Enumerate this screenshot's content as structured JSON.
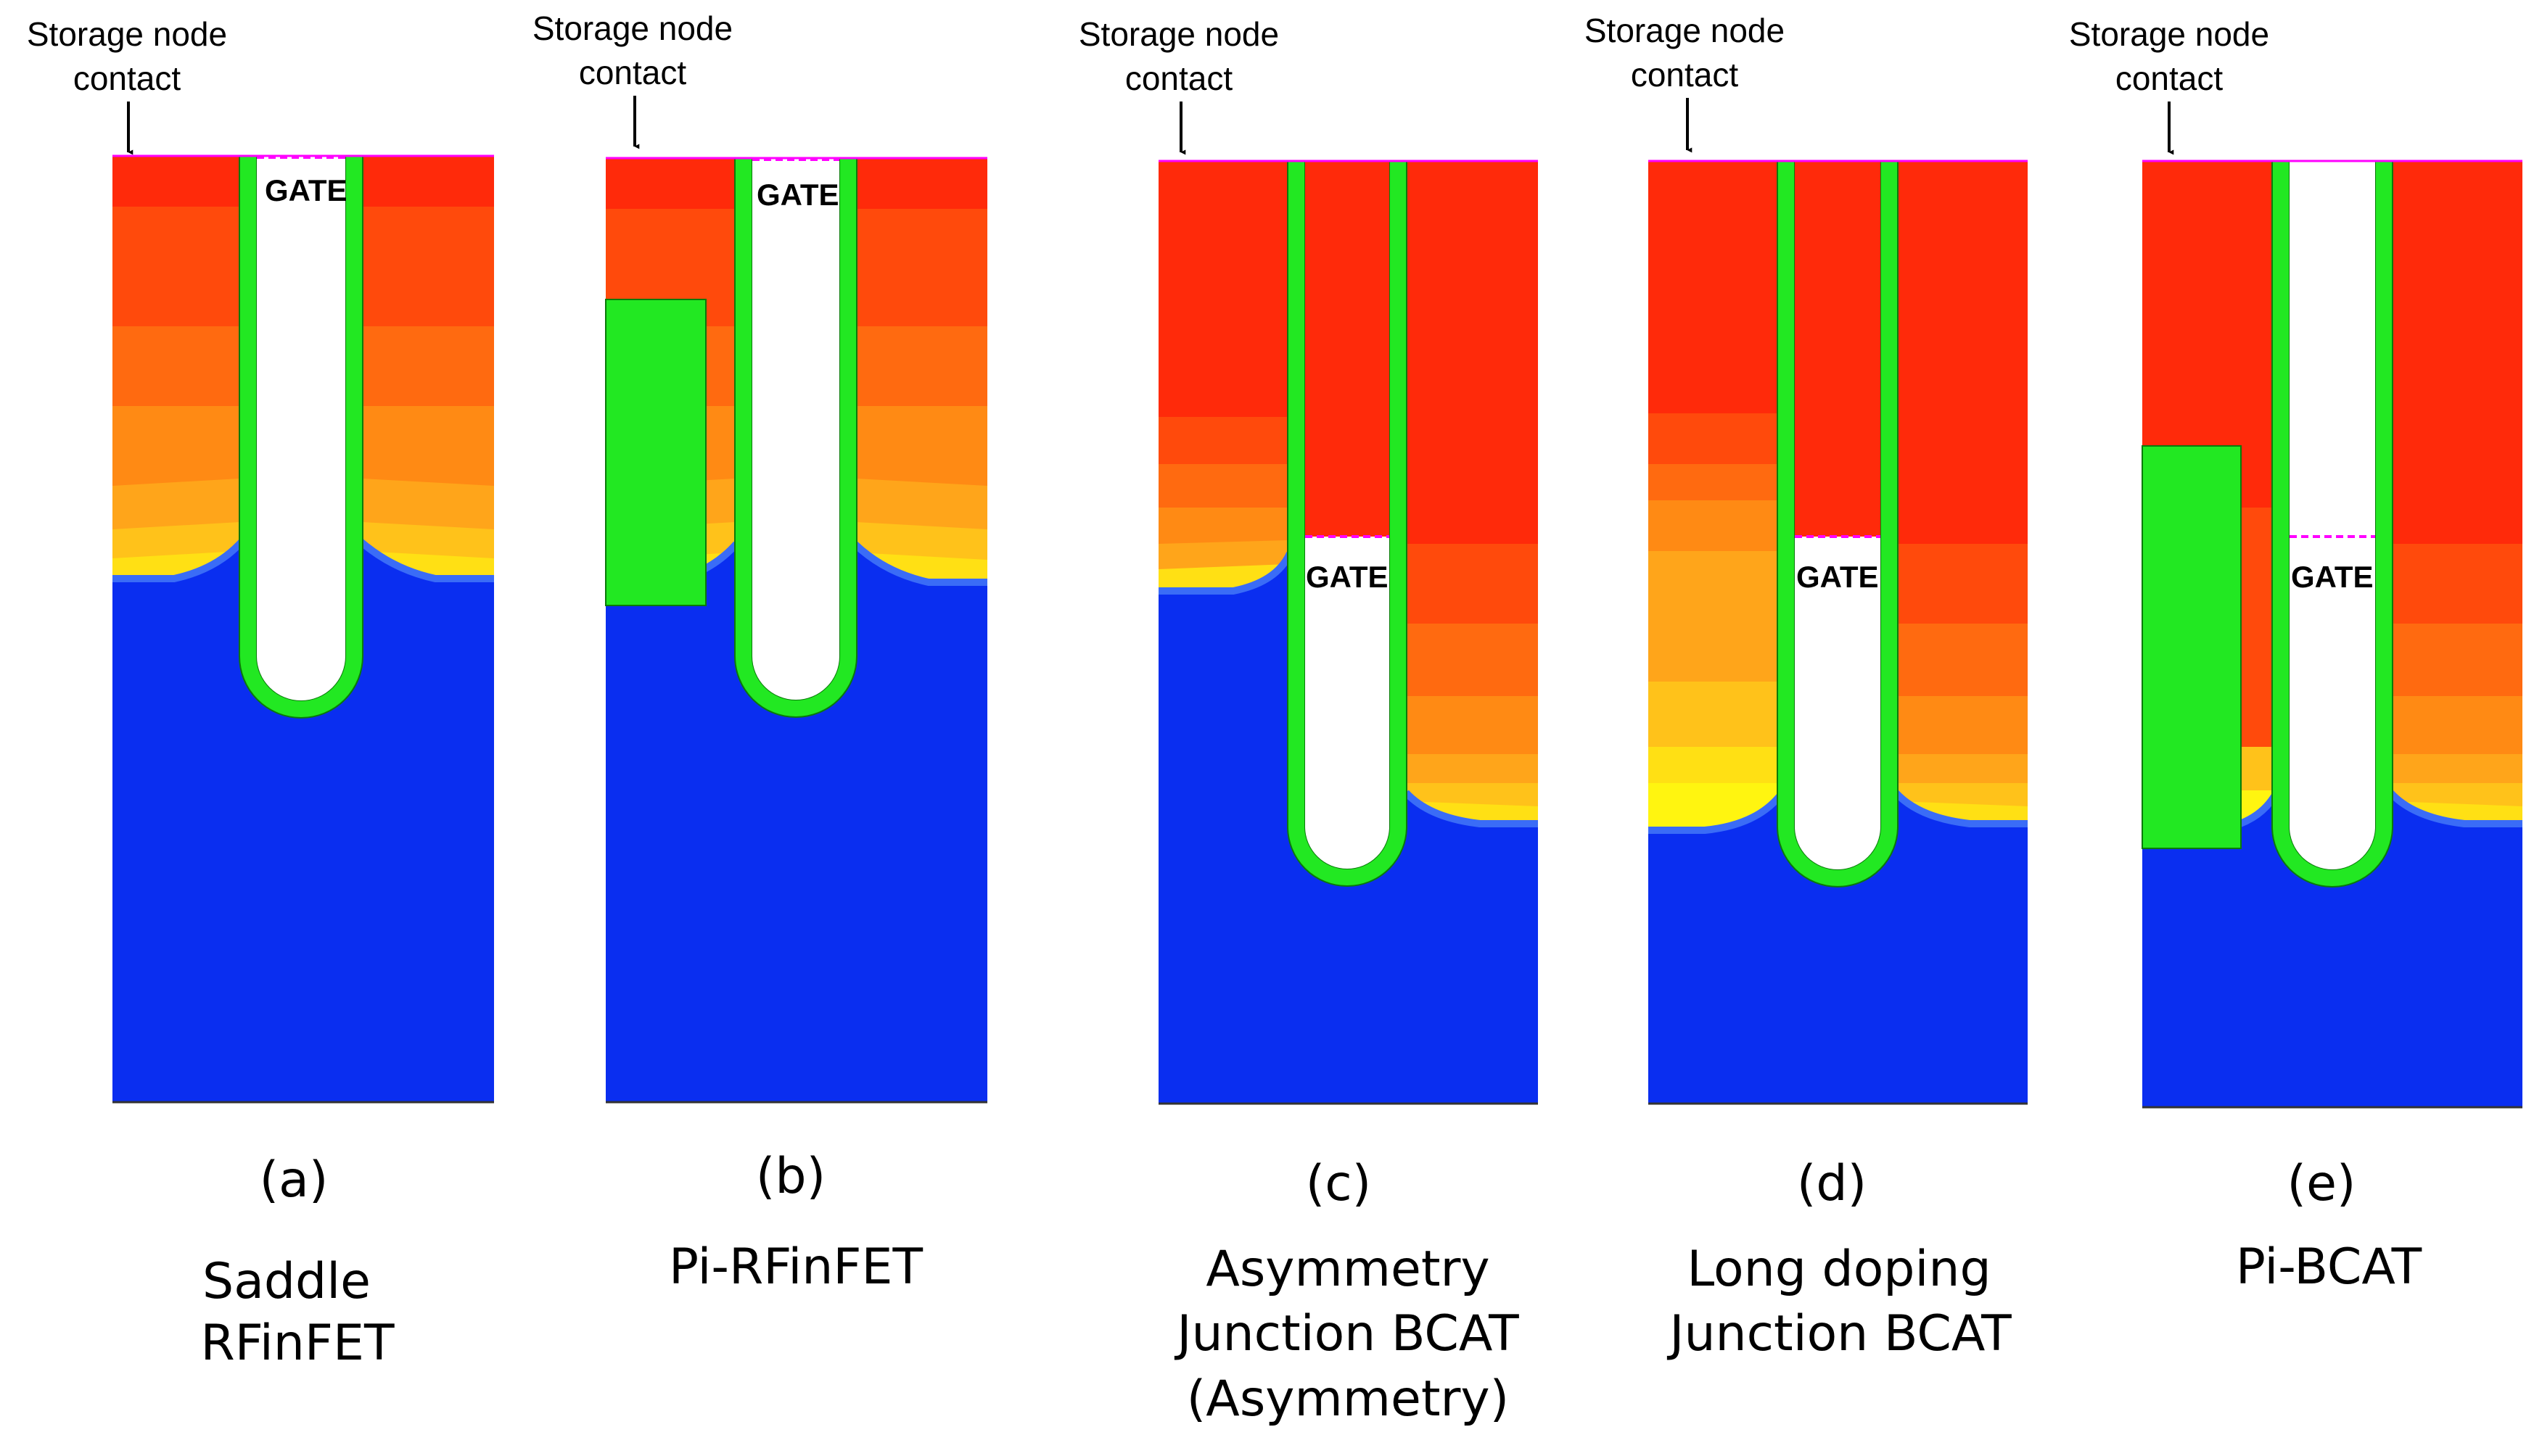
{
  "figure": {
    "panels": [
      {
        "id": "a",
        "annotation": "Storage node contact",
        "annotation_lines": [
          "Storage node",
          "contact"
        ],
        "gate_label": "GATE",
        "label": "(a)",
        "caption_lines": [
          "Saddle",
          "RFinFET"
        ]
      },
      {
        "id": "b",
        "annotation": "Storage node contact",
        "annotation_lines": [
          "Storage node",
          "contact"
        ],
        "gate_label": "GATE",
        "label": "(b)",
        "caption_lines": [
          "Pi-RFinFET"
        ]
      },
      {
        "id": "c",
        "annotation": "Storage node contact",
        "annotation_lines": [
          "Storage node",
          "contact"
        ],
        "gate_label": "GATE",
        "label": "(c)",
        "caption_lines": [
          "Asymmetry",
          "Junction BCAT",
          "(Asymmetry)"
        ]
      },
      {
        "id": "d",
        "annotation": "Storage node contact",
        "annotation_lines": [
          "Storage node",
          "contact"
        ],
        "gate_label": "GATE",
        "label": "(d)",
        "caption_lines": [
          "Long doping",
          "Junction BCAT"
        ]
      },
      {
        "id": "e",
        "annotation": "Storage node contact",
        "annotation_lines": [
          "Storage node",
          "contact"
        ],
        "gate_label": "GATE",
        "label": "(e)",
        "caption_lines": [
          "Pi-BCAT"
        ]
      }
    ],
    "colors": {
      "substrate": "#0a2ef0",
      "substrate_edge": "#3a6cf7",
      "oxide": "#22e822",
      "oxide_edge": "#0a7a0a",
      "gate_dashed": "#ff00ff",
      "doping_levels": [
        "#ff2a0a",
        "#ff4a0c",
        "#ff6a10",
        "#ff8a14",
        "#ffa51a",
        "#ffc21a",
        "#ffe014",
        "#fff510"
      ]
    }
  }
}
